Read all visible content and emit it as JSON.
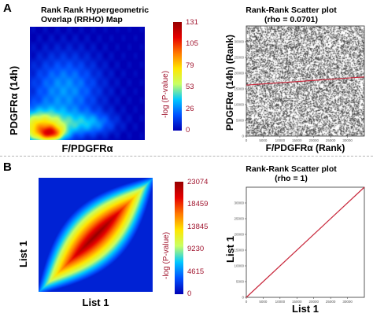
{
  "panels": [
    {
      "letter": "A",
      "heatmap": {
        "title_line1": "Rank Rank Hypergeometric",
        "title_line2": "Overlap (RRHO) Map",
        "xlabel": "F/PDGFRα",
        "ylabel": "PDGFRα (14h)",
        "colorbar_label": "-log (P-value)",
        "colorbar_ticks": [
          "131",
          "105",
          "79",
          "53",
          "26",
          "0"
        ]
      },
      "scatter": {
        "title": "Rank-Rank Scatter plot",
        "subtitle": "(rho = 0.0701)",
        "xlabel": "F/PDGFRα (Rank)",
        "ylabel": "PDGFRα (14h) (Rank)"
      }
    },
    {
      "letter": "B",
      "heatmap": {
        "xlabel": "List 1",
        "ylabel": "List 1",
        "colorbar_label": "-log (P-value)",
        "colorbar_ticks": [
          "23074",
          "18459",
          "13845",
          "9230",
          "4615",
          "0"
        ]
      },
      "scatter": {
        "title": "Rank-Rank Scatter plot",
        "subtitle": "(rho = 1)",
        "xlabel": "List 1",
        "ylabel": "List 1"
      }
    }
  ],
  "chart_data": [
    {
      "type": "heatmap",
      "colorbar_range": [
        0,
        131
      ],
      "colormap": [
        "#0000b4",
        "#0050ff",
        "#00c8ff",
        "#c8ff64",
        "#ffe600",
        "#ff7800",
        "#e60000",
        "#960000"
      ]
    },
    {
      "type": "scatter",
      "xlim": [
        0,
        35000
      ],
      "ylim": [
        0,
        35000
      ],
      "x_ticks": [
        0,
        5000,
        10000,
        15000,
        20000,
        25000,
        30000
      ],
      "y_ticks": [
        0,
        5000,
        10000,
        15000,
        20000,
        25000,
        30000
      ],
      "point_color": "#303030",
      "fit_line": {
        "x": [
          0,
          35000
        ],
        "y": [
          16200,
          18800
        ],
        "color": "#c8283c"
      }
    },
    {
      "type": "heatmap",
      "colorbar_range": [
        0,
        23074
      ],
      "colormap": [
        "#0000b4",
        "#0050ff",
        "#00c8ff",
        "#c8ff64",
        "#ffe600",
        "#ff7800",
        "#e60000",
        "#960000"
      ]
    },
    {
      "type": "scatter",
      "xlim": [
        0,
        35000
      ],
      "ylim": [
        0,
        35000
      ],
      "x_ticks": [
        0,
        5000,
        10000,
        15000,
        20000,
        25000,
        30000
      ],
      "y_ticks": [
        0,
        5000,
        10000,
        15000,
        20000,
        25000,
        30000
      ],
      "fit_line": {
        "x": [
          0,
          35000
        ],
        "y": [
          0,
          35000
        ],
        "color": "#c8283c"
      }
    }
  ]
}
